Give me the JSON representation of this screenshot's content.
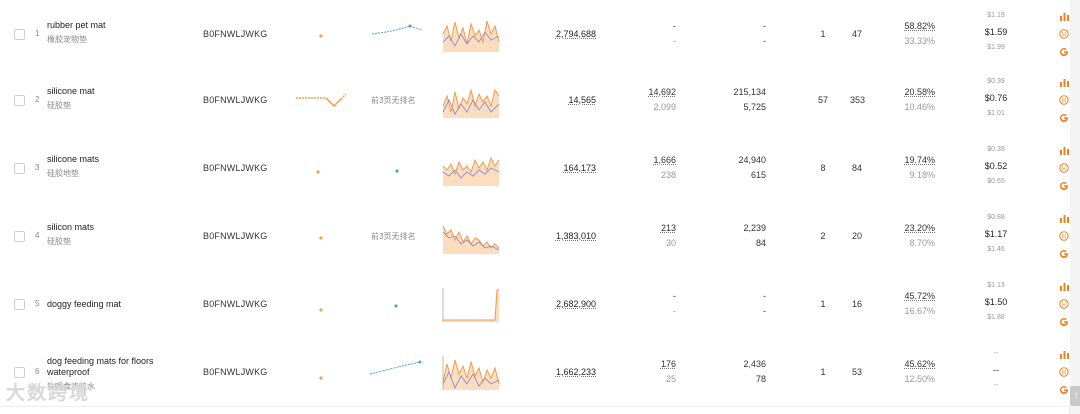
{
  "rows": [
    {
      "index": "1",
      "keyword": "rubber pet mat",
      "keyword_cn": "橡胶宠物垫",
      "asin": "B0FNWLJWKG",
      "rank_text": "",
      "search_volume": "2,794,688",
      "col2_top": "-",
      "col2_bottom": "-",
      "col3_top": "-",
      "col3_bottom": "-",
      "col4": "1",
      "col5": "47",
      "pct_top": "58.82%",
      "pct_bottom": "33.33%",
      "price_high": "$1.19",
      "price_mid": "$1.59",
      "price_low": "$1.99"
    },
    {
      "index": "2",
      "keyword": "silicone mat",
      "keyword_cn": "硅胶垫",
      "asin": "B0FNWLJWKG",
      "rank_text": "前3页无排名",
      "search_volume": "14,565",
      "col2_top": "14,692",
      "col2_bottom": "2,099",
      "col3_top": "215,134",
      "col3_bottom": "5,725",
      "col4": "57",
      "col5": "353",
      "pct_top": "20.58%",
      "pct_bottom": "10.46%",
      "price_high": "$0.39",
      "price_mid": "$0.76",
      "price_low": "$1.01"
    },
    {
      "index": "3",
      "keyword": "silicone mats",
      "keyword_cn": "硅胶地垫",
      "asin": "B0FNWLJWKG",
      "rank_text": "",
      "search_volume": "164,173",
      "col2_top": "1,666",
      "col2_bottom": "238",
      "col3_top": "24,940",
      "col3_bottom": "615",
      "col4": "8",
      "col5": "84",
      "pct_top": "19.74%",
      "pct_bottom": "9.18%",
      "price_high": "$0.39",
      "price_mid": "$0.52",
      "price_low": "$0.65"
    },
    {
      "index": "4",
      "keyword": "silicon mats",
      "keyword_cn": "硅胶垫",
      "asin": "B0FNWLJWKG",
      "rank_text": "前3页无排名",
      "search_volume": "1,383,010",
      "col2_top": "213",
      "col2_bottom": "30",
      "col3_top": "2,239",
      "col3_bottom": "84",
      "col4": "2",
      "col5": "20",
      "pct_top": "23.20%",
      "pct_bottom": "8.70%",
      "price_high": "$0.88",
      "price_mid": "$1.17",
      "price_low": "$1.46"
    },
    {
      "index": "5",
      "keyword": "doggy feeding mat",
      "keyword_cn": "",
      "asin": "B0FNWLJWKG",
      "rank_text": "",
      "search_volume": "2,682,900",
      "col2_top": "-",
      "col2_bottom": "-",
      "col3_top": "-",
      "col3_bottom": "-",
      "col4": "1",
      "col5": "16",
      "pct_top": "45.72%",
      "pct_bottom": "16.67%",
      "price_high": "$1.13",
      "price_mid": "$1.50",
      "price_low": "$1.88"
    },
    {
      "index": "6",
      "keyword": "dog feeding mats for floors waterproof",
      "keyword_cn": "狗喂食垫防水",
      "asin": "B0FNWLJWKG",
      "rank_text": "",
      "search_volume": "1,662,233",
      "col2_top": "176",
      "col2_bottom": "25",
      "col3_top": "2,436",
      "col3_bottom": "78",
      "col4": "1",
      "col5": "53",
      "pct_top": "45.62%",
      "pct_bottom": "12.50%",
      "price_high": "--",
      "price_mid": "--",
      "price_low": "--"
    }
  ],
  "icons": [
    "bar-chart-icon",
    "smiley-icon",
    "google-icon"
  ],
  "colors": {
    "accent": "#f07f1e",
    "trend_blue": "#4aa3df",
    "spark_fill": "#fbd5b0",
    "spark_line": "#f39a4c",
    "spark_second": "#8b8fc9"
  },
  "watermark": "大数跨境"
}
